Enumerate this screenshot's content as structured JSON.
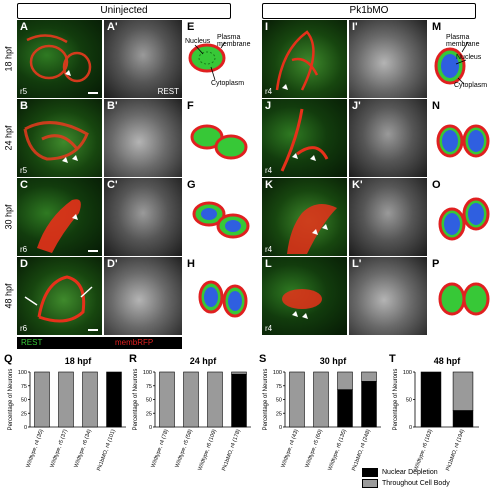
{
  "headers": {
    "left": "Uninjected",
    "right": "Pk1bMO"
  },
  "times": [
    "18 hpf",
    "24 hpf",
    "30 hpf",
    "48 hpf"
  ],
  "micro_panels": {
    "uninjected_fluor": [
      "A",
      "B",
      "C",
      "D"
    ],
    "uninjected_gray": [
      "A'",
      "B'",
      "C'",
      "D'"
    ],
    "mo_fluor": [
      "I",
      "J",
      "K",
      "L"
    ],
    "mo_gray": [
      "I'",
      "J'",
      "K'",
      "L'"
    ],
    "uninjected_rhombomeres": [
      "r5",
      "r5",
      "r6",
      "r6"
    ],
    "mo_rhombomeres": [
      "r4",
      "r4",
      "r4",
      "r4"
    ],
    "rest_tag": "REST"
  },
  "diagram_panels": {
    "uninjected": [
      "E",
      "F",
      "G",
      "H"
    ],
    "mo": [
      "M",
      "N",
      "O",
      "P"
    ],
    "labels": {
      "plasma_membrane": "Plasma membrane",
      "nucleus": "Nucleus",
      "cytoplasm": "Cytoplasm"
    }
  },
  "channel_legend": {
    "rest": "REST",
    "membrfp": "membRFP"
  },
  "colors": {
    "depletion": "#000000",
    "throughout": "#9a9a9a",
    "rest_green": "#37c837",
    "membrane_red": "#e02020",
    "nucleus_blue": "#2f5fe0"
  },
  "chart_legend": {
    "depletion": "Nuclear Depletion",
    "throughout": "Throughout Cell Body"
  },
  "chart_data": [
    {
      "letter": "Q",
      "type": "bar",
      "title": "18 hpf",
      "ylabel": "Percentage of Neurons",
      "ylim": [
        0,
        100
      ],
      "yticks": [
        "0",
        "25",
        "50",
        "75",
        "100"
      ],
      "categories": [
        "Wildtype, r4 (35)",
        "Wildtype, r5 (37)",
        "Wildtype, r6 (34)",
        "Pk1bMO, r4 (101)"
      ],
      "series": [
        {
          "name": "Nuclear Depletion",
          "values": [
            0,
            0,
            0,
            100
          ]
        },
        {
          "name": "Throughout Cell Body",
          "values": [
            100,
            100,
            100,
            0
          ]
        }
      ]
    },
    {
      "letter": "R",
      "type": "bar",
      "title": "24 hpf",
      "ylabel": "Percentage of Neurons",
      "ylim": [
        0,
        100
      ],
      "yticks": [
        "0",
        "25",
        "50",
        "75",
        "100"
      ],
      "categories": [
        "Wildtype, r4 (78)",
        "Wildtype, r5 (58)",
        "Wildtype, r6 (109)",
        "Pk1bMO, r4 (178)"
      ],
      "series": [
        {
          "name": "Nuclear Depletion",
          "values": [
            0,
            0,
            0,
            96
          ]
        },
        {
          "name": "Throughout Cell Body",
          "values": [
            100,
            100,
            100,
            4
          ]
        }
      ]
    },
    {
      "letter": "S",
      "type": "bar",
      "title": "30 hpf",
      "ylabel": "Percentage of Neurons",
      "ylim": [
        0,
        100
      ],
      "yticks": [
        "0",
        "25",
        "50",
        "75",
        "100"
      ],
      "categories": [
        "Wildtype, r4 (43)",
        "Wildtype, r5 (60)",
        "Wildtype, r6 (135)",
        "Pk1bMO, r4 (248)"
      ],
      "series": [
        {
          "name": "Nuclear Depletion",
          "values": [
            0,
            0,
            68,
            83
          ]
        },
        {
          "name": "Throughout Cell Body",
          "values": [
            100,
            100,
            32,
            17
          ]
        }
      ]
    },
    {
      "letter": "T",
      "type": "bar",
      "title": "48 hpf",
      "ylabel": "Percentage of Neurons",
      "ylim": [
        0,
        100
      ],
      "yticks": [
        "0",
        "50",
        "100"
      ],
      "categories": [
        "Wildtype, r6 (163)",
        "Pk1bMO, r4 (194)"
      ],
      "series": [
        {
          "name": "Nuclear Depletion",
          "values": [
            100,
            30
          ]
        },
        {
          "name": "Throughout Cell Body",
          "values": [
            0,
            70
          ]
        }
      ]
    }
  ]
}
